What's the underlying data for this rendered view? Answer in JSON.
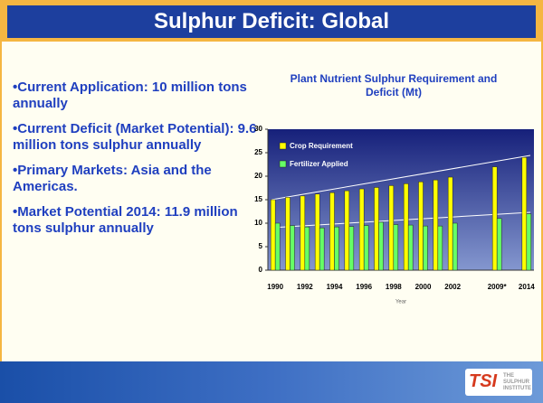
{
  "slide": {
    "title": "Sulphur Deficit: Global",
    "bullets": [
      "•Current Application: 10 million tons annually",
      "•Current Deficit (Market Potential): 9.6 million tons sulphur annually",
      "•Primary Markets: Asia and the Americas.",
      "•Market Potential 2014: 11.9 million tons sulphur annually"
    ],
    "logo": {
      "mark": "TSI",
      "text": "THE SULPHUR INSTITUTE"
    }
  },
  "chart_data": {
    "type": "bar",
    "title": "Plant Nutrient Sulphur Requirement and Deficit (Mt)",
    "x_label": "Year",
    "categories": [
      "1990",
      null,
      "1992",
      null,
      "1994",
      null,
      "1996",
      null,
      "1998",
      null,
      "2000",
      null,
      "2002",
      null,
      null,
      "2009*",
      null,
      "2014"
    ],
    "series": [
      {
        "name": "Crop Requirement",
        "color": "#ffff00",
        "values": [
          15,
          15.5,
          15.8,
          16.2,
          16.5,
          16.9,
          17.3,
          17.6,
          18,
          18.4,
          18.8,
          19.2,
          19.8,
          null,
          null,
          22,
          null,
          24
        ]
      },
      {
        "name": "Fertilizer Applied",
        "color": "#66ff66",
        "values": [
          10,
          9.5,
          9.2,
          9,
          9.2,
          9.3,
          9.5,
          10.2,
          9.7,
          9.6,
          9.4,
          9.4,
          10,
          null,
          null,
          11,
          null,
          12
        ]
      }
    ],
    "ylim": [
      0,
      30
    ],
    "yticks": [
      0,
      5,
      10,
      15,
      20,
      25,
      30
    ],
    "grid": false,
    "legend": "top-left"
  }
}
